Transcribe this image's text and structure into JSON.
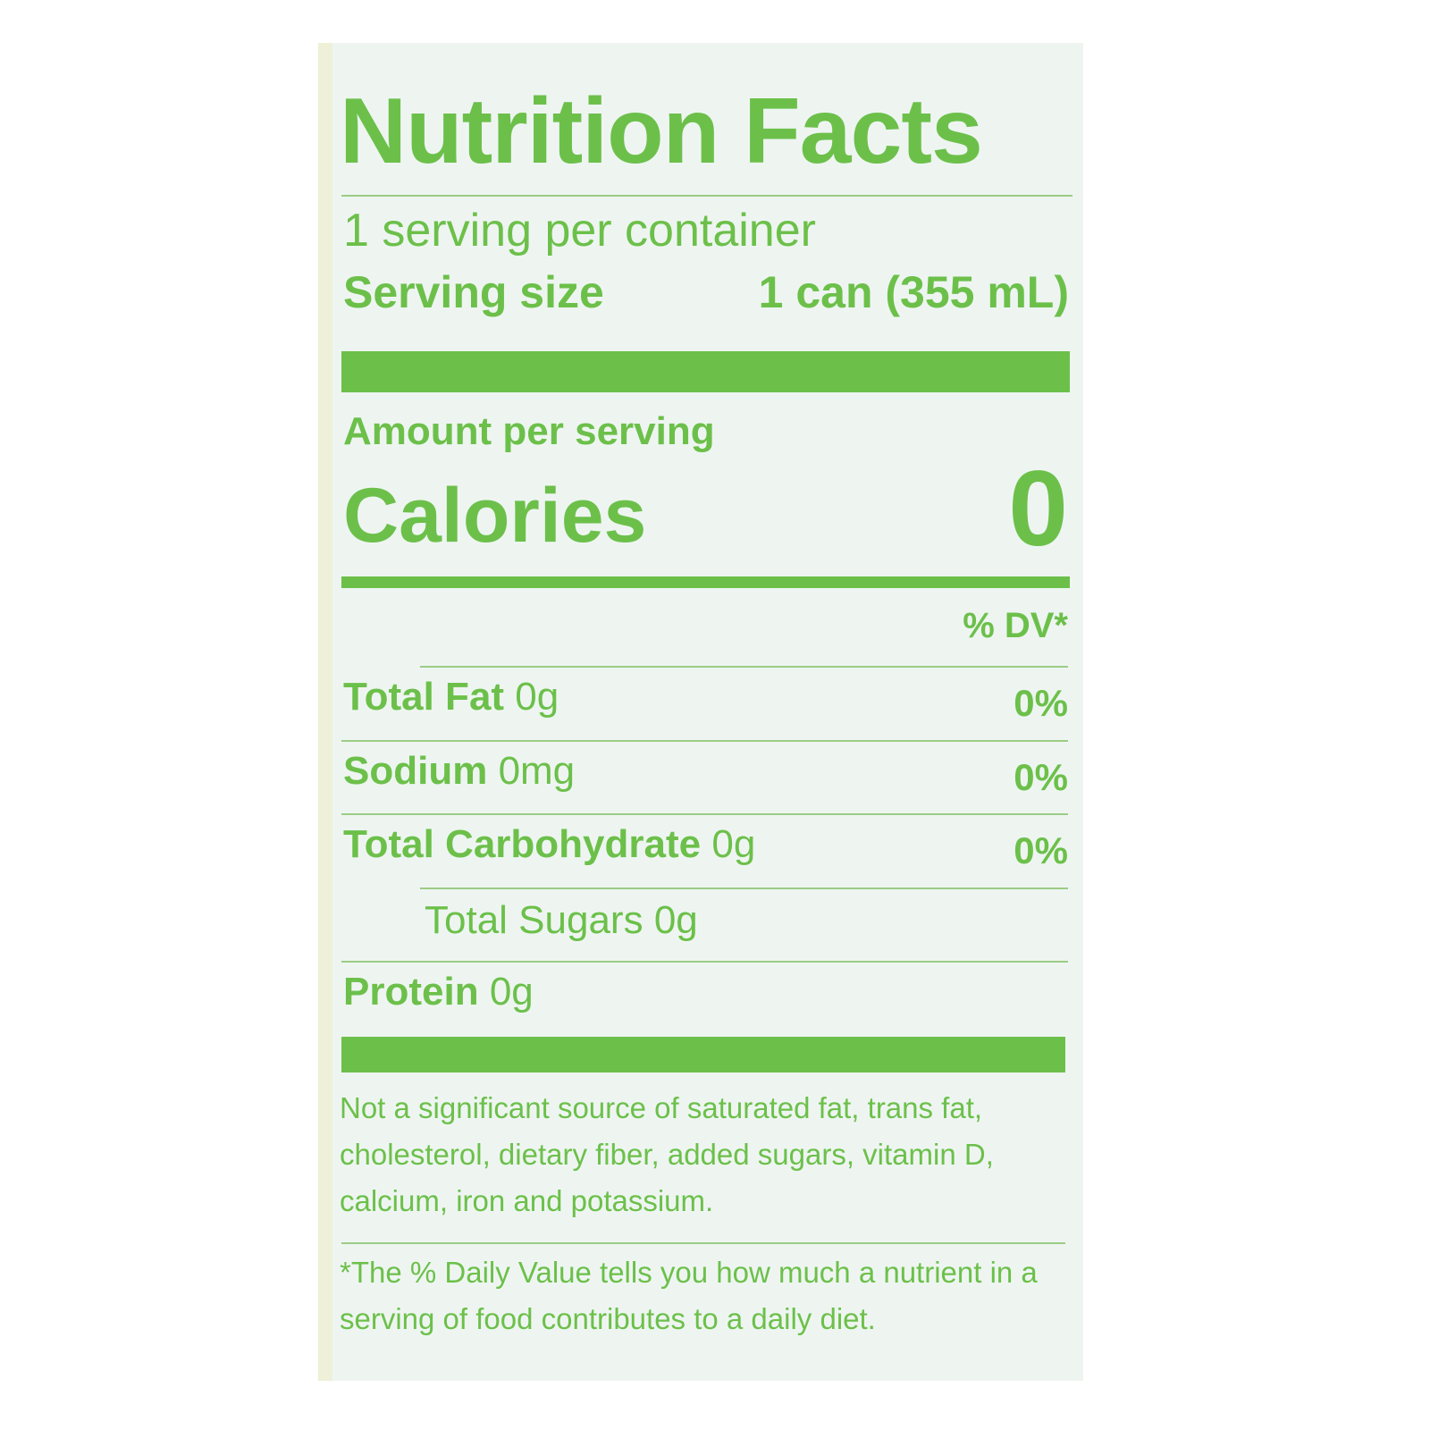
{
  "title": "Nutrition Facts",
  "servings": "1 serving per container",
  "serving_size": {
    "label": "Serving size",
    "value": "1 can (355 mL)"
  },
  "amount_header": "Amount per serving",
  "calories": {
    "label": "Calories",
    "value": "0"
  },
  "dv_header": "% DV*",
  "rows": [
    {
      "name": "Total Fat",
      "amount": "0g",
      "dv": "0%"
    },
    {
      "name": "Sodium",
      "amount": "0mg",
      "dv": "0%"
    },
    {
      "name": "Total Carbohydrate",
      "amount": "0g",
      "dv": "0%"
    },
    {
      "name": "Total Sugars",
      "amount": "0g"
    },
    {
      "name": "Protein",
      "amount": "0g"
    }
  ],
  "footnote_sources": "Not a significant source of saturated fat, trans fat, cholesterol, dietary fiber, added sugars, vitamin D, calcium, iron and potassium.",
  "footnote_dv": "*The % Daily Value tells you how much a nutrient in a serving of food contributes to a daily diet."
}
